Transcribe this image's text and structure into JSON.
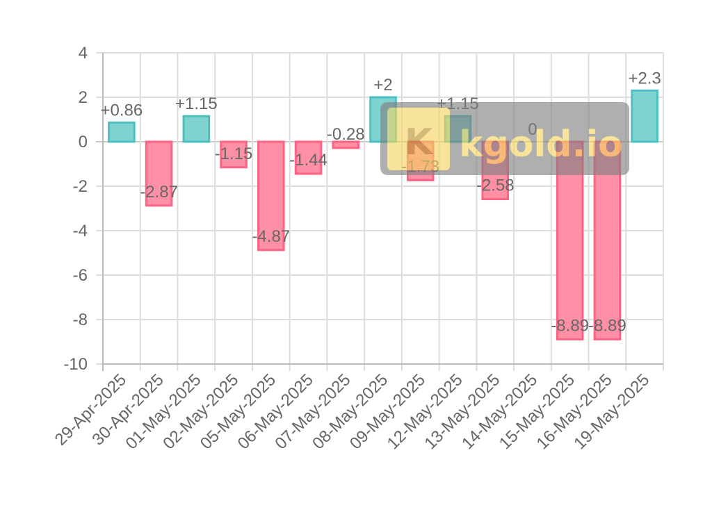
{
  "watermark": {
    "text": "kgold.io",
    "badge_letter": "K"
  },
  "chart_data": {
    "type": "bar",
    "title": "",
    "xlabel": "",
    "ylabel": "",
    "categories": [
      "29-Apr-2025",
      "30-Apr-2025",
      "01-May-2025",
      "02-May-2025",
      "05-May-2025",
      "06-May-2025",
      "07-May-2025",
      "08-May-2025",
      "09-May-2025",
      "12-May-2025",
      "13-May-2025",
      "14-May-2025",
      "15-May-2025",
      "16-May-2025",
      "19-May-2025"
    ],
    "values": [
      0.86,
      -2.87,
      1.15,
      -1.15,
      -4.87,
      -1.44,
      -0.28,
      2,
      -1.73,
      1.15,
      -2.58,
      0,
      -8.89,
      -8.89,
      2.3
    ],
    "value_labels": [
      "+0.86",
      "-2.87",
      "+1.15",
      "-1.15",
      "-4.87",
      "-1.44",
      "-0.28",
      "+2",
      "-1.73",
      "+1.15",
      "-2.58",
      "0",
      "-8.89",
      "-8.89",
      "+2.3"
    ],
    "ylim": [
      -10,
      4
    ],
    "yticks": [
      "4",
      "2",
      "0",
      "-2",
      "-4",
      "-6",
      "-8",
      "-10"
    ],
    "grid": true,
    "colors": {
      "positive_fill": "#7fd3d0",
      "positive_stroke": "#4bc0c0",
      "negative_fill": "#ff8fa4",
      "negative_stroke": "#ff6384",
      "grid": "#dddddd",
      "axis": "#bbbbbb"
    }
  }
}
